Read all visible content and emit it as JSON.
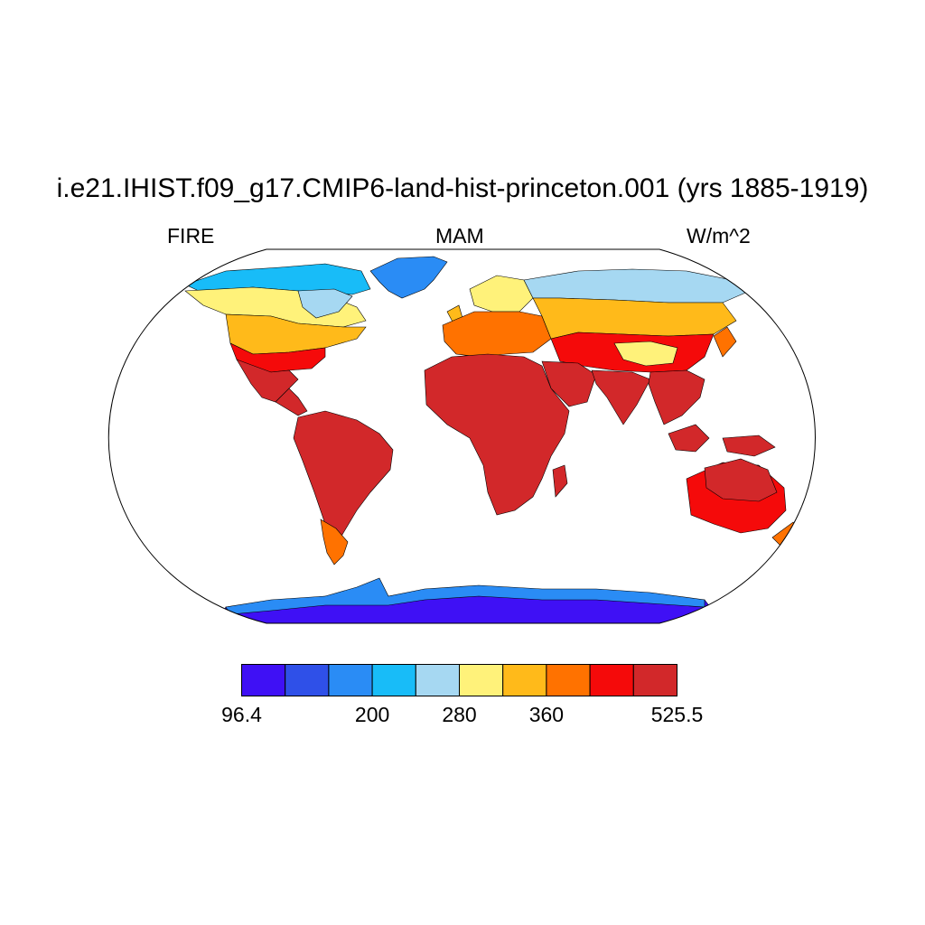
{
  "title": "i.e21.IHIST.f09_g17.CMIP6-land-hist-princeton.001 (yrs 1885-1919)",
  "left_label": "FIRE",
  "center_label": "MAM",
  "right_label": "W/m^2",
  "colorbar": {
    "colors": [
      "#3f10f5",
      "#2f50e8",
      "#2a8cf5",
      "#18bcf8",
      "#a6d8f2",
      "#fff27a",
      "#ffba1a",
      "#ff7200",
      "#f50a0a",
      "#d2282a"
    ],
    "labels": [
      {
        "text": "96.4",
        "boundary": 0
      },
      {
        "text": "200",
        "boundary": 3
      },
      {
        "text": "280",
        "boundary": 5
      },
      {
        "text": "360",
        "boundary": 7
      },
      {
        "text": "525.5",
        "boundary": 10
      }
    ]
  },
  "regions": [
    {
      "name": "antarctica",
      "level": 0
    },
    {
      "name": "antarctica-coast",
      "level": 2
    },
    {
      "name": "greenland",
      "level": 2
    },
    {
      "name": "arctic-canada",
      "level": 3
    },
    {
      "name": "canada",
      "level": 5
    },
    {
      "name": "hudson-bay-shore",
      "level": 4
    },
    {
      "name": "usa-north",
      "level": 6
    },
    {
      "name": "usa-south",
      "level": 8
    },
    {
      "name": "mexico",
      "level": 9
    },
    {
      "name": "central-america",
      "level": 9
    },
    {
      "name": "south-america",
      "level": 9
    },
    {
      "name": "patagonia",
      "level": 7
    },
    {
      "name": "scandinavia",
      "level": 5
    },
    {
      "name": "europe",
      "level": 7
    },
    {
      "name": "siberia",
      "level": 4
    },
    {
      "name": "russia",
      "level": 6
    },
    {
      "name": "central-asia",
      "level": 8
    },
    {
      "name": "tibet",
      "level": 5
    },
    {
      "name": "africa",
      "level": 9
    },
    {
      "name": "arabia",
      "level": 9
    },
    {
      "name": "india",
      "level": 9
    },
    {
      "name": "southeast-asia",
      "level": 9
    },
    {
      "name": "madagascar",
      "level": 9
    },
    {
      "name": "borneo",
      "level": 9
    },
    {
      "name": "new-guinea",
      "level": 9
    },
    {
      "name": "australia",
      "level": 8
    },
    {
      "name": "australia-north",
      "level": 9
    },
    {
      "name": "new-zealand",
      "level": 7
    },
    {
      "name": "japan",
      "level": 7
    },
    {
      "name": "uk",
      "level": 6
    }
  ]
}
